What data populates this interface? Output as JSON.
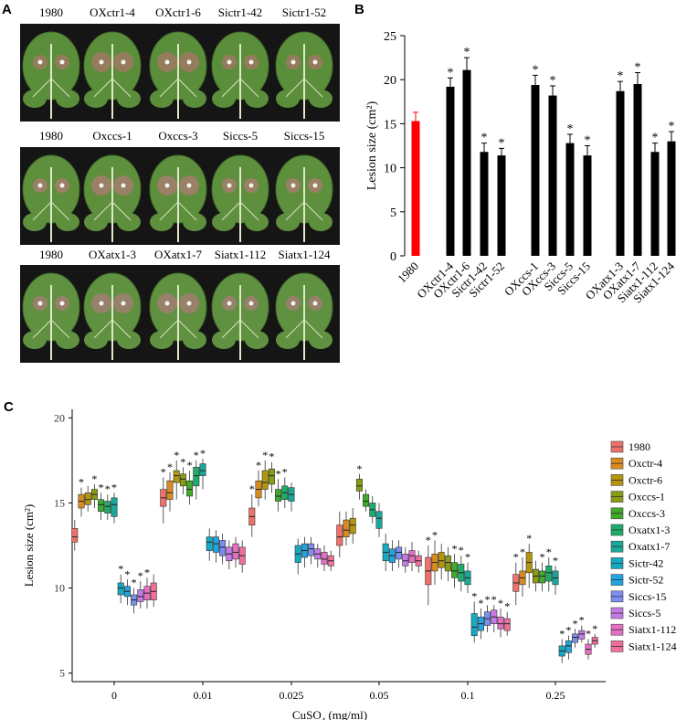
{
  "figure": {
    "panel_labels": {
      "A": "A",
      "B": "B",
      "C": "C"
    },
    "panelA": {
      "rows": [
        {
          "labels": [
            "1980",
            "OXctr1-4",
            "OXctr1-6",
            "Sictr1-42",
            "Sictr1-52"
          ],
          "leaf_color": "#5b8e3a",
          "lesion_color": "#9b7a62"
        },
        {
          "labels": [
            "1980",
            "Oxccs-1",
            "Oxccs-3",
            "Siccs-5",
            "Siccs-15"
          ],
          "leaf_color": "#5e8f3d",
          "lesion_color": "#a07e6a"
        },
        {
          "labels": [
            "1980",
            "OXatx1-3",
            "OXatx1-7",
            "Siatx1-112",
            "Siatx1-124"
          ],
          "leaf_color": "#5f9140",
          "lesion_color": "#9d8070"
        }
      ]
    }
  },
  "chart_data": [
    {
      "type": "bar",
      "panel": "B",
      "ylabel": "Lesion size (cm²)",
      "ylim": [
        0,
        25
      ],
      "yticks": [
        0,
        5,
        10,
        15,
        20,
        25
      ],
      "categories": [
        "1980",
        "OXctr1-4",
        "OXctr1-6",
        "Sictr1-42",
        "Sictr1-52",
        "OXccs-1",
        "OXccs-3",
        "Siccs-5",
        "Siccs-15",
        "OXatx1-3",
        "OXatx1-7",
        "Siatx1-112",
        "Siatx1-124"
      ],
      "values": [
        15.3,
        19.2,
        21.1,
        11.8,
        11.4,
        19.4,
        18.2,
        12.8,
        11.4,
        18.7,
        19.5,
        11.8,
        13.0
      ],
      "errors": [
        1.0,
        1.0,
        1.4,
        1.0,
        0.8,
        1.1,
        1.1,
        1.0,
        1.1,
        1.1,
        1.3,
        1.0,
        1.1
      ],
      "significant": [
        false,
        true,
        true,
        true,
        true,
        true,
        true,
        true,
        true,
        true,
        true,
        true,
        true
      ],
      "annotation": "*",
      "colors": {
        "control": "#ff0000",
        "other": "#000000"
      }
    },
    {
      "type": "box",
      "panel": "C",
      "xlabel": "CuSO4 (mg/ml)",
      "ylabel": "Lesion size (cm²)",
      "ylim": [
        4.5,
        20.5
      ],
      "yticks": [
        5,
        10,
        15,
        20
      ],
      "groups": [
        "0",
        "0.01",
        "0.025",
        "0.05",
        "0.1",
        "0.25"
      ],
      "annotation": "*",
      "series": [
        {
          "name": "1980",
          "color": "#f0716a",
          "medians": [
            13.0,
            15.3,
            14.2,
            13.0,
            11.0,
            10.3
          ],
          "q1": [
            12.7,
            14.8,
            13.7,
            12.5,
            10.2,
            9.8
          ],
          "q3": [
            13.5,
            15.8,
            14.7,
            13.7,
            11.8,
            10.8
          ],
          "min": [
            12.2,
            13.8,
            13.0,
            11.8,
            9.0,
            9.0
          ],
          "max": [
            14.0,
            16.5,
            15.5,
            14.5,
            12.5,
            11.5
          ],
          "sig": [
            false,
            true,
            true,
            false,
            true,
            true
          ]
        },
        {
          "name": "Oxctr-4",
          "color": "#d98b1e",
          "medians": [
            15.1,
            15.6,
            15.8,
            13.4,
            11.5,
            10.6
          ],
          "q1": [
            14.7,
            15.2,
            15.3,
            13.0,
            11.0,
            10.2
          ],
          "q3": [
            15.5,
            16.3,
            16.3,
            14.0,
            12.0,
            11.0
          ],
          "min": [
            14.2,
            14.5,
            14.8,
            12.5,
            10.2,
            9.5
          ],
          "max": [
            15.9,
            16.8,
            16.9,
            14.5,
            12.8,
            11.8
          ],
          "sig": [
            true,
            true,
            true,
            false,
            true,
            true
          ]
        },
        {
          "name": "Oxctr-6",
          "color": "#b4960d",
          "medians": [
            15.2,
            16.6,
            16.2,
            13.7,
            11.6,
            11.5
          ],
          "q1": [
            14.9,
            16.2,
            15.8,
            13.2,
            11.2,
            10.9
          ],
          "q3": [
            15.6,
            16.9,
            16.9,
            14.1,
            12.1,
            12.1
          ],
          "min": [
            14.5,
            15.2,
            15.2,
            12.6,
            10.5,
            10.0
          ],
          "max": [
            16.0,
            17.5,
            17.5,
            14.7,
            12.6,
            12.6
          ],
          "sig": [
            false,
            true,
            true,
            false,
            false,
            true
          ]
        },
        {
          "name": "Oxccs-1",
          "color": "#8a9c14",
          "medians": [
            15.5,
            16.4,
            16.6,
            16.0,
            11.5,
            10.7
          ],
          "q1": [
            15.2,
            16.0,
            16.1,
            15.7,
            11.0,
            10.3
          ],
          "q3": [
            15.8,
            16.7,
            17.0,
            16.4,
            11.9,
            11.1
          ],
          "min": [
            14.7,
            15.5,
            15.6,
            15.2,
            10.4,
            9.8
          ],
          "max": [
            16.1,
            17.1,
            17.4,
            16.7,
            12.4,
            11.6
          ],
          "sig": [
            true,
            true,
            true,
            true,
            false,
            false
          ]
        },
        {
          "name": "Oxccs-3",
          "color": "#3faa2c",
          "medians": [
            14.9,
            15.8,
            15.4,
            15.1,
            11.0,
            10.7
          ],
          "q1": [
            14.5,
            15.4,
            15.1,
            14.8,
            10.6,
            10.3
          ],
          "q3": [
            15.2,
            16.3,
            15.8,
            15.5,
            11.5,
            11.0
          ],
          "min": [
            14.0,
            14.9,
            14.5,
            14.5,
            10.0,
            9.8
          ],
          "max": [
            15.6,
            16.9,
            16.4,
            15.8,
            12.0,
            11.5
          ],
          "sig": [
            true,
            true,
            true,
            false,
            true,
            true
          ]
        },
        {
          "name": "Oxatx1-3",
          "color": "#1cad6a",
          "medians": [
            14.8,
            16.6,
            15.6,
            14.6,
            10.9,
            10.9
          ],
          "q1": [
            14.4,
            16.0,
            15.2,
            14.2,
            10.4,
            10.4
          ],
          "q3": [
            15.1,
            17.1,
            16.0,
            15.0,
            11.4,
            11.3
          ],
          "min": [
            14.0,
            15.2,
            14.7,
            13.8,
            9.8,
            9.8
          ],
          "max": [
            15.5,
            17.5,
            16.5,
            15.4,
            11.9,
            11.8
          ],
          "sig": [
            true,
            true,
            true,
            false,
            true,
            true
          ]
        },
        {
          "name": "Oxatx1-7",
          "color": "#1aa89a",
          "medians": [
            14.9,
            16.9,
            15.5,
            14.1,
            10.6,
            10.6
          ],
          "q1": [
            14.2,
            16.6,
            15.1,
            13.5,
            10.2,
            10.2
          ],
          "q3": [
            15.3,
            17.3,
            15.9,
            14.5,
            11.0,
            11.0
          ],
          "min": [
            13.8,
            15.8,
            14.5,
            13.0,
            9.7,
            9.6
          ],
          "max": [
            15.6,
            17.6,
            16.2,
            15.0,
            11.5,
            11.3
          ],
          "sig": [
            true,
            true,
            false,
            false,
            true,
            true
          ]
        },
        {
          "name": "Sictr-42",
          "color": "#13aac2",
          "medians": [
            10.0,
            12.7,
            12.0,
            12.1,
            7.7,
            6.3
          ],
          "q1": [
            9.6,
            12.2,
            11.5,
            11.6,
            7.2,
            6.0
          ],
          "q3": [
            10.3,
            13.0,
            12.5,
            12.6,
            8.5,
            6.6
          ],
          "min": [
            9.1,
            11.6,
            10.8,
            11.0,
            6.8,
            5.6
          ],
          "max": [
            10.8,
            13.5,
            12.9,
            13.2,
            9.2,
            7.0
          ],
          "sig": [
            true,
            false,
            false,
            false,
            true,
            true
          ]
        },
        {
          "name": "Sictr-52",
          "color": "#22a4df",
          "medians": [
            9.8,
            12.6,
            12.2,
            11.9,
            7.9,
            6.6
          ],
          "q1": [
            9.5,
            12.1,
            11.8,
            11.5,
            7.5,
            6.2
          ],
          "q3": [
            10.1,
            13.0,
            12.6,
            12.3,
            8.3,
            6.9
          ],
          "min": [
            9.0,
            11.5,
            11.2,
            11.0,
            7.0,
            5.8
          ],
          "max": [
            10.5,
            13.4,
            13.0,
            12.8,
            8.8,
            7.2
          ],
          "sig": [
            true,
            false,
            false,
            false,
            true,
            true
          ]
        },
        {
          "name": "Siccs-15",
          "color": "#7c8ef0",
          "medians": [
            9.3,
            12.4,
            12.3,
            12.1,
            8.2,
            7.1
          ],
          "q1": [
            9.0,
            11.9,
            11.9,
            11.7,
            7.8,
            6.8
          ],
          "q3": [
            9.6,
            12.8,
            12.6,
            12.4,
            8.6,
            7.3
          ],
          "min": [
            8.5,
            11.4,
            11.4,
            11.2,
            7.4,
            6.5
          ],
          "max": [
            10.0,
            13.2,
            13.0,
            12.8,
            9.0,
            7.6
          ],
          "sig": [
            true,
            false,
            false,
            false,
            true,
            true
          ]
        },
        {
          "name": "Siccs-5",
          "color": "#c67ae8",
          "medians": [
            9.5,
            12.0,
            12.0,
            11.6,
            8.3,
            7.3
          ],
          "q1": [
            9.2,
            11.6,
            11.7,
            11.3,
            7.9,
            7.0
          ],
          "q3": [
            9.9,
            12.4,
            12.3,
            12.0,
            8.7,
            7.5
          ],
          "min": [
            8.8,
            11.1,
            11.2,
            10.9,
            7.4,
            6.8
          ],
          "max": [
            10.4,
            12.8,
            12.6,
            12.4,
            9.0,
            7.8
          ],
          "sig": [
            true,
            false,
            false,
            false,
            true,
            true
          ]
        },
        {
          "name": "Siatx1-112",
          "color": "#e46fc4",
          "medians": [
            9.7,
            12.1,
            11.7,
            11.9,
            7.9,
            6.4
          ],
          "q1": [
            9.3,
            11.7,
            11.4,
            11.5,
            7.6,
            6.1
          ],
          "q3": [
            10.1,
            12.6,
            12.1,
            12.2,
            8.3,
            6.7
          ],
          "min": [
            8.8,
            11.2,
            11.0,
            11.0,
            7.1,
            5.8
          ],
          "max": [
            10.6,
            13.0,
            12.5,
            12.7,
            8.8,
            7.0
          ],
          "sig": [
            true,
            false,
            false,
            false,
            true,
            true
          ]
        },
        {
          "name": "Siatx1-124",
          "color": "#f0709a",
          "medians": [
            9.8,
            11.9,
            11.6,
            11.6,
            7.9,
            6.9
          ],
          "q1": [
            9.3,
            11.4,
            11.3,
            11.3,
            7.5,
            6.7
          ],
          "q3": [
            10.3,
            12.4,
            11.9,
            11.9,
            8.2,
            7.1
          ],
          "min": [
            8.9,
            10.9,
            11.0,
            10.9,
            7.2,
            6.5
          ],
          "max": [
            10.8,
            12.8,
            12.2,
            12.2,
            8.6,
            7.3
          ],
          "sig": [
            false,
            false,
            false,
            false,
            true,
            true
          ]
        }
      ]
    }
  ]
}
